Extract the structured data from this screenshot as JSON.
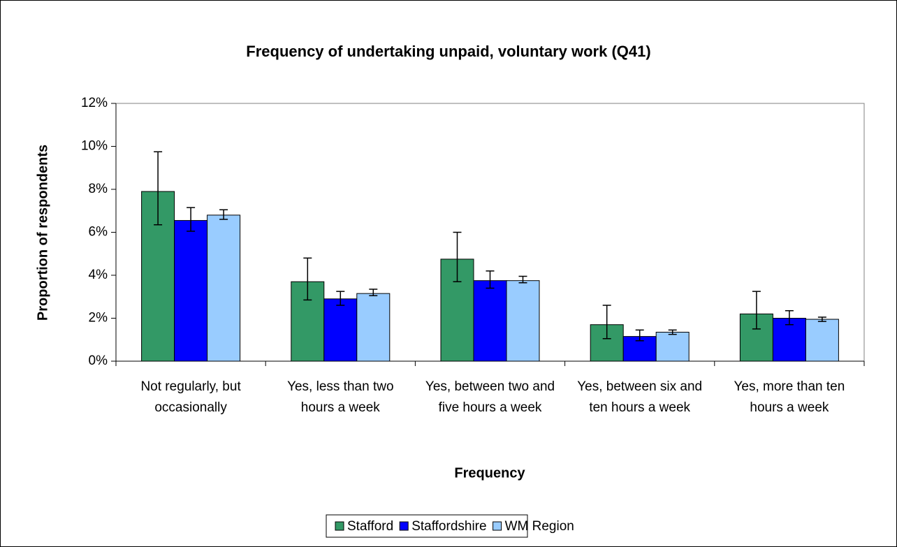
{
  "chart_data": {
    "type": "bar",
    "title": "Frequency of undertaking unpaid, voluntary work (Q41)",
    "x_label": "Frequency",
    "y_label": "Proportion of respondents",
    "categories": [
      "Not regularly, but occasionally",
      "Yes, less than two hours a week",
      "Yes, between two and five hours a week",
      "Yes, between six and ten hours a week",
      "Yes, more than ten hours a week"
    ],
    "series": [
      {
        "name": "Stafford",
        "color": "#339966",
        "values": [
          7.9,
          3.7,
          4.75,
          1.7,
          2.2
        ],
        "ci_low": [
          6.35,
          2.85,
          3.7,
          1.05,
          1.5
        ],
        "ci_high": [
          9.75,
          4.8,
          6.0,
          2.6,
          3.25
        ]
      },
      {
        "name": "Staffordshire",
        "color": "#0000ff",
        "values": [
          6.55,
          2.9,
          3.75,
          1.15,
          2.0
        ],
        "ci_low": [
          6.05,
          2.6,
          3.4,
          0.95,
          1.7
        ],
        "ci_high": [
          7.15,
          3.25,
          4.2,
          1.45,
          2.35
        ]
      },
      {
        "name": "WM Region",
        "color": "#99ccff",
        "values": [
          6.8,
          3.15,
          3.75,
          1.35,
          1.95
        ],
        "ci_low": [
          6.6,
          3.05,
          3.65,
          1.25,
          1.85
        ],
        "ci_high": [
          7.05,
          3.35,
          3.95,
          1.45,
          2.05
        ]
      }
    ],
    "ylim": [
      0,
      12
    ],
    "yticks": [
      {
        "value": 0,
        "label": "0%"
      },
      {
        "value": 2,
        "label": "2%"
      },
      {
        "value": 4,
        "label": "4%"
      },
      {
        "value": 6,
        "label": "6%"
      },
      {
        "value": 8,
        "label": "8%"
      },
      {
        "value": 10,
        "label": "10%"
      },
      {
        "value": 12,
        "label": "12%"
      }
    ],
    "legend": "bottom"
  }
}
